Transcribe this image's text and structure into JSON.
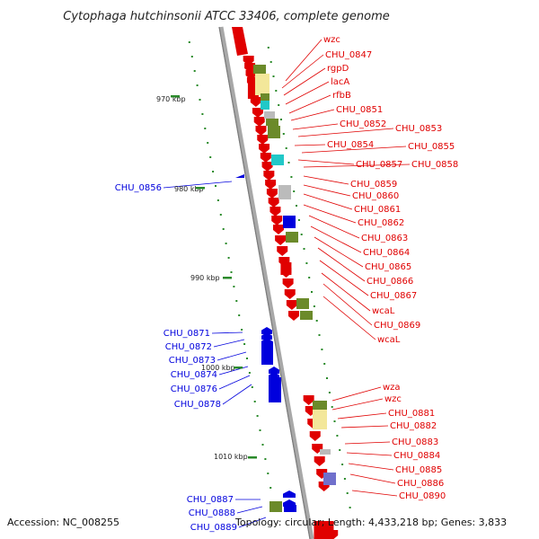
{
  "title": "Cytophaga hutchinsonii ATCC 33406, complete genome",
  "footer": {
    "accession": "Accession: NC_008255",
    "summary": "Topology: circular; Length: 4,433,218 bp; Genes: 3,833"
  },
  "colors": {
    "forward": "#e00000",
    "reverse": "#0000dd",
    "axis": "#888888",
    "ticks": "#2a8a2a",
    "olive": "#6b8a2a",
    "yellow": "#f3e79a",
    "cyan": "#21c8c8",
    "gray": "#bbbbbb",
    "purple": "#7070cc"
  },
  "ticks": [
    "970 kbp",
    "980 kbp",
    "990 kbp",
    "1000 kbp",
    "1010 kbp"
  ],
  "labels_right": [
    "wzc",
    "CHU_0847",
    "rgpD",
    "lacA",
    "rfbB",
    "CHU_0851",
    "CHU_0852",
    "CHU_0853",
    "CHU_0854",
    "CHU_0855",
    "CHU_0857",
    "CHU_0858",
    "CHU_0859",
    "CHU_0860",
    "CHU_0861",
    "CHU_0862",
    "CHU_0863",
    "CHU_0864",
    "CHU_0865",
    "CHU_0866",
    "CHU_0867",
    "wcaL",
    "CHU_0869",
    "wcaL",
    "wza",
    "wzc",
    "CHU_0881",
    "CHU_0882",
    "CHU_0883",
    "CHU_0884",
    "CHU_0885",
    "CHU_0886",
    "CHU_0890"
  ],
  "labels_left": [
    "CHU_0856",
    "CHU_0871",
    "CHU_0872",
    "CHU_0873",
    "CHU_0874",
    "CHU_0876",
    "CHU_0878",
    "CHU_0887",
    "CHU_0888",
    "CHU_0889"
  ]
}
